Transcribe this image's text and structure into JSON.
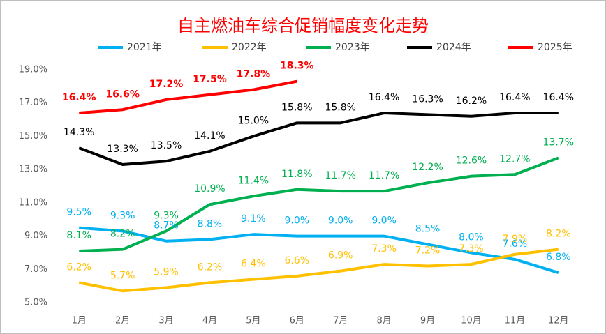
{
  "chart_data": {
    "type": "line",
    "title": "自主燃油车综合促销幅度变化走势",
    "categories": [
      "1月",
      "2月",
      "3月",
      "4月",
      "5月",
      "6月",
      "7月",
      "8月",
      "9月",
      "10月",
      "11月",
      "12月"
    ],
    "ylim": [
      5,
      19
    ],
    "yticks": [
      {
        "value": 5,
        "label": "5.0%"
      },
      {
        "value": 7,
        "label": "7.0%"
      },
      {
        "value": 9,
        "label": "9.0%"
      },
      {
        "value": 11,
        "label": "11.0%"
      },
      {
        "value": 13,
        "label": "13.0%"
      },
      {
        "value": 15,
        "label": "15.0%"
      },
      {
        "value": 17,
        "label": "17.0%"
      },
      {
        "value": 19,
        "label": "19.0%"
      }
    ],
    "legend": "top",
    "series": [
      {
        "name": "2021年",
        "color": "#00b0f0",
        "values": [
          9.5,
          9.3,
          8.7,
          8.8,
          9.1,
          9.0,
          9.0,
          9.0,
          8.5,
          8.0,
          7.6,
          6.8
        ],
        "value_labels": [
          "9.5%",
          "9.3%",
          "8.7%",
          "8.8%",
          "9.1%",
          "9.0%",
          "9.0%",
          "9.0%",
          "8.5%",
          "8.0%",
          "7.6%",
          "6.8%"
        ]
      },
      {
        "name": "2022年",
        "color": "#ffc000",
        "values": [
          6.2,
          5.7,
          5.9,
          6.2,
          6.4,
          6.6,
          6.9,
          7.3,
          7.2,
          7.3,
          7.9,
          8.2
        ],
        "value_labels": [
          "6.2%",
          "5.7%",
          "5.9%",
          "6.2%",
          "6.4%",
          "6.6%",
          "6.9%",
          "7.3%",
          "7.2%",
          "7.3%",
          "7.9%",
          "8.2%"
        ]
      },
      {
        "name": "2023年",
        "color": "#00b050",
        "values": [
          8.1,
          8.2,
          9.3,
          10.9,
          11.4,
          11.8,
          11.7,
          11.7,
          12.2,
          12.6,
          12.7,
          13.7
        ],
        "value_labels": [
          "8.1%",
          "8.2%",
          "9.3%",
          "10.9%",
          "11.4%",
          "11.8%",
          "11.7%",
          "11.7%",
          "12.2%",
          "12.6%",
          "12.7%",
          "13.7%"
        ]
      },
      {
        "name": "2024年",
        "color": "#000000",
        "values": [
          14.3,
          13.3,
          13.5,
          14.1,
          15.0,
          15.8,
          15.8,
          16.4,
          16.3,
          16.2,
          16.4,
          16.4
        ],
        "value_labels": [
          "14.3%",
          "13.3%",
          "13.5%",
          "14.1%",
          "15.0%",
          "15.8%",
          "15.8%",
          "16.4%",
          "16.3%",
          "16.2%",
          "16.4%",
          "16.4%"
        ]
      },
      {
        "name": "2025年",
        "color": "#ff0000",
        "values": [
          16.4,
          16.6,
          17.2,
          17.5,
          17.8,
          18.3,
          null,
          null,
          null,
          null,
          null,
          null
        ],
        "value_labels": [
          "16.4%",
          "16.6%",
          "17.2%",
          "17.5%",
          "17.8%",
          "18.3%",
          null,
          null,
          null,
          null,
          null,
          null
        ]
      }
    ]
  }
}
